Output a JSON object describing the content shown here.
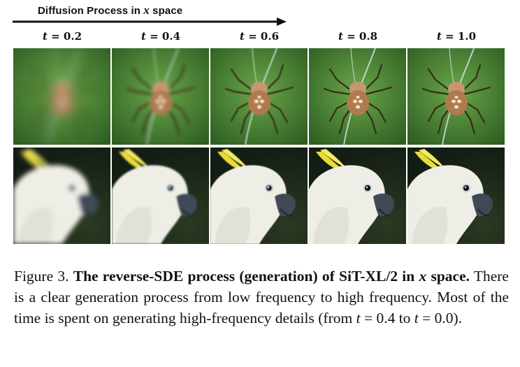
{
  "header": {
    "arrow_label_prefix": "Diffusion Process in ",
    "arrow_label_var": "x",
    "arrow_label_suffix": " space"
  },
  "timesteps": [
    {
      "var": "t",
      "eq": " = 0.2"
    },
    {
      "var": "t",
      "eq": " = 0.4"
    },
    {
      "var": "t",
      "eq": " = 0.6"
    },
    {
      "var": "t",
      "eq": " = 0.8"
    },
    {
      "var": "t",
      "eq": " = 1.0"
    }
  ],
  "rows": [
    {
      "subject": "spider",
      "blur": [
        7,
        2.5,
        0.8,
        0.3,
        0
      ]
    },
    {
      "subject": "cockatoo",
      "blur": [
        3.5,
        1.2,
        0.4,
        0.15,
        0
      ]
    }
  ],
  "colors": {
    "spider_bg": "#4f8a3a",
    "cockatoo_bg": "#141d14",
    "crest": "#e8dc3a"
  },
  "caption": {
    "label": "Figure 3. ",
    "bold_title": "The reverse-SDE process (generation) of SiT-XL/2 in ",
    "bold_var": "x",
    "bold_title_end": " space.",
    "text1": " There is a clear generation process from low frequency to high frequency. Most of the time is spent on generating high-frequency details (from ",
    "var1": "t",
    "eq1": " = 0.4 to ",
    "var2": "t",
    "eq2": " = 0.0)."
  }
}
